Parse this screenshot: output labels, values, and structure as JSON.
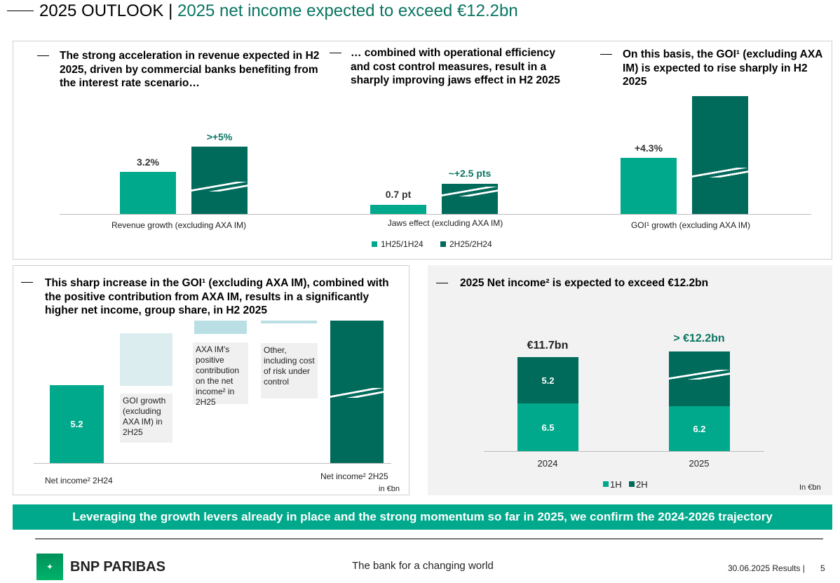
{
  "header": {
    "title": "2025 OUTLOOK |",
    "subtitle": "2025 net income expected to exceed €12.2bn"
  },
  "top": {
    "headings": [
      "The strong acceleration in revenue expected in H2 2025, driven by commercial banks benefiting from the interest rate scenario…",
      "… combined with operational efficiency and cost control measures, result in a sharply improving jaws effect in H2 2025",
      "On this basis, the GOI¹ (excluding AXA IM) is expected to rise sharply in H2 2025"
    ],
    "groups": [
      {
        "label": "Revenue growth (excluding AXA IM)",
        "h1": "3.2%",
        "h2": ">+5%"
      },
      {
        "label": "Jaws effect (excluding AXA IM)",
        "h1": "0.7 pt",
        "h2": "~+2.5 pts"
      },
      {
        "label": "GOI¹ growth (excluding AXA IM)",
        "h1": "+4.3%",
        "h2": ""
      }
    ],
    "legend": [
      "1H25/1H24",
      "2H25/2H24"
    ]
  },
  "left": {
    "heading": "This sharp increase in the GOI¹ (excluding AXA IM), combined with the positive contribution from AXA IM, results in a significantly higher net income, group share, in H2 2025",
    "start_value": "5.2",
    "notes": [
      "GOI growth (excluding AXA IM) in 2H25",
      "AXA IM's positive contribution on the net income² in 2H25",
      "Other, including cost of risk under control"
    ],
    "start_label": "Net income² 2H24",
    "end_label": "Net income² 2H25",
    "unit": "in €bn"
  },
  "right": {
    "heading": "2025 Net income² is expected to exceed €12.2bn",
    "bars": [
      {
        "year": "2024",
        "total": "€11.7bn",
        "h1": "6.5",
        "h2": "5.2"
      },
      {
        "year": "2025",
        "total": "> €12.2bn",
        "h1": "6.2",
        "h2": ""
      }
    ],
    "legend": [
      "1H",
      "2H"
    ],
    "unit": "In €bn"
  },
  "banner": "Leveraging the growth levers already in place and the strong momentum so far in 2025, we confirm the 2024-2026 trajectory",
  "footer": {
    "brand": "BNP PARIBAS",
    "tagline": "The bank for a changing world",
    "date": "30.06.2025 Results |",
    "page": "5"
  }
}
